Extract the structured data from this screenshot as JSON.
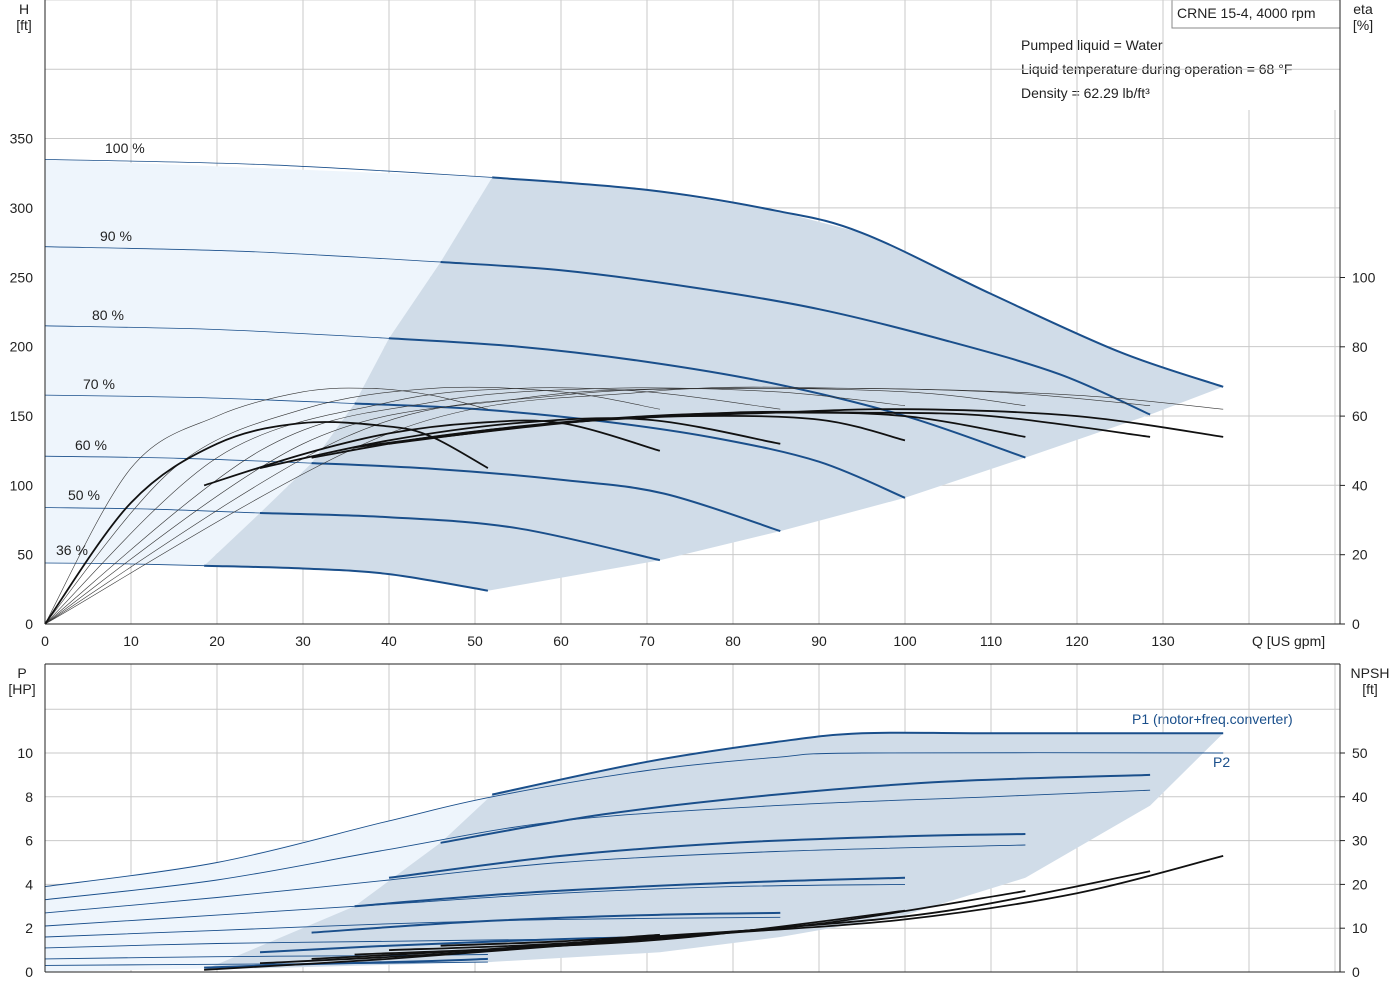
{
  "chart_data": [
    {
      "type": "line",
      "panel": "head-efficiency",
      "legend_box": "CRNE 15-4, 4000 rpm",
      "info": [
        "Pumped liquid = Water",
        "Liquid temperature during operation = 68 °F",
        "Density = 62.29 lb/ft³"
      ],
      "left_axis": {
        "title": "H",
        "unit": "[ft]",
        "ylim": [
          0,
          450
        ],
        "ticks": [
          0,
          50,
          100,
          150,
          200,
          250,
          300,
          350
        ]
      },
      "right_axis": {
        "title": "eta",
        "unit": "[%]",
        "ylim": [
          0,
          150
        ],
        "ticks": [
          0,
          20,
          40,
          60,
          80,
          100
        ]
      },
      "x_axis": {
        "unit": "Q [US gpm]",
        "xlim": [
          0,
          150
        ],
        "ticks": [
          0,
          10,
          20,
          30,
          40,
          50,
          60,
          70,
          80,
          90,
          100,
          110,
          120,
          130
        ]
      },
      "grid": true,
      "head_curves": [
        {
          "name": "100 %",
          "shut_off": 335,
          "points": [
            [
              52,
              322
            ],
            [
              70,
              313
            ],
            [
              85,
              298
            ],
            [
              95,
              282
            ],
            [
              110,
              238
            ],
            [
              125,
              196
            ],
            [
              137,
              171
            ]
          ]
        },
        {
          "name": "90 %",
          "shut_off": 272,
          "points": [
            [
              46,
              261
            ],
            [
              60,
              255
            ],
            [
              75,
              243
            ],
            [
              90,
              227
            ],
            [
              105,
              204
            ],
            [
              118,
              180
            ],
            [
              128.5,
              151
            ]
          ]
        },
        {
          "name": "80 %",
          "shut_off": 215,
          "points": [
            [
              40,
              206
            ],
            [
              55,
              200
            ],
            [
              70,
              189
            ],
            [
              85,
              173
            ],
            [
              100,
              150
            ],
            [
              114,
              120
            ]
          ]
        },
        {
          "name": "70 %",
          "shut_off": 165,
          "points": [
            [
              36,
              159
            ],
            [
              50,
              155
            ],
            [
              65,
              146
            ],
            [
              78,
              134
            ],
            [
              90,
              117
            ],
            [
              100,
              91
            ]
          ]
        },
        {
          "name": "60 %",
          "shut_off": 121,
          "points": [
            [
              31,
              116
            ],
            [
              45,
              112
            ],
            [
              60,
              104
            ],
            [
              72,
              94
            ],
            [
              85.5,
              67
            ]
          ]
        },
        {
          "name": "50 %",
          "shut_off": 84,
          "points": [
            [
              25,
              80
            ],
            [
              40,
              77
            ],
            [
              55,
              69
            ],
            [
              71.5,
              46
            ]
          ]
        },
        {
          "name": "36 %",
          "shut_off": 44,
          "points": [
            [
              18.5,
              42
            ],
            [
              30,
              40
            ],
            [
              40,
              36
            ],
            [
              51.5,
              24
            ]
          ]
        }
      ],
      "efficiency_curves": [
        {
          "points": [
            [
              0,
              0
            ],
            [
              10,
              35
            ],
            [
              20,
              52
            ],
            [
              30,
              58
            ],
            [
              40,
              57
            ],
            [
              45,
              54
            ],
            [
              51.5,
              45
            ]
          ]
        },
        {
          "points": [
            [
              18.5,
              40
            ],
            [
              30,
              49
            ],
            [
              40,
              55
            ],
            [
              50,
              58
            ],
            [
              60,
              58
            ],
            [
              71.5,
              50
            ]
          ]
        },
        {
          "points": [
            [
              25,
              45
            ],
            [
              40,
              53
            ],
            [
              55,
              58
            ],
            [
              70,
              59
            ],
            [
              85.5,
              52
            ]
          ]
        },
        {
          "points": [
            [
              31,
              48
            ],
            [
              45,
              54
            ],
            [
              60,
              58
            ],
            [
              75,
              60
            ],
            [
              90,
              59
            ],
            [
              100,
              53
            ]
          ]
        },
        {
          "points": [
            [
              36,
              51
            ],
            [
              55,
              57
            ],
            [
              70,
              60
            ],
            [
              85,
              61
            ],
            [
              100,
              60
            ],
            [
              114,
              54
            ]
          ]
        },
        {
          "points": [
            [
              40,
              52
            ],
            [
              60,
              58
            ],
            [
              80,
              61
            ],
            [
              95,
              61
            ],
            [
              110,
              60
            ],
            [
              128.5,
              54
            ]
          ]
        },
        {
          "points": [
            [
              46,
              54
            ],
            [
              65,
              59
            ],
            [
              85,
              61
            ],
            [
              100,
              62
            ],
            [
              120,
              60
            ],
            [
              137,
              54
            ]
          ]
        }
      ],
      "thin_efficiency_curves": [
        {
          "points": [
            [
              0,
              0
            ],
            [
              10,
              45
            ],
            [
              20,
              60
            ],
            [
              30,
              67
            ],
            [
              38,
              68
            ],
            [
              45,
              66
            ],
            [
              51.5,
              62
            ]
          ]
        },
        {
          "points": [
            [
              0,
              0
            ],
            [
              15,
              45
            ],
            [
              30,
              62
            ],
            [
              45,
              68
            ],
            [
              60,
              67
            ],
            [
              71.5,
              62
            ]
          ]
        },
        {
          "points": [
            [
              0,
              0
            ],
            [
              20,
              48
            ],
            [
              40,
              64
            ],
            [
              55,
              68
            ],
            [
              70,
              67
            ],
            [
              85.5,
              62
            ]
          ]
        },
        {
          "points": [
            [
              0,
              0
            ],
            [
              25,
              50
            ],
            [
              45,
              64
            ],
            [
              65,
              68
            ],
            [
              85,
              67
            ],
            [
              100,
              63
            ]
          ]
        },
        {
          "points": [
            [
              0,
              0
            ],
            [
              30,
              52
            ],
            [
              55,
              65
            ],
            [
              75,
              68
            ],
            [
              100,
              67
            ],
            [
              114,
              63
            ]
          ]
        },
        {
          "points": [
            [
              0,
              0
            ],
            [
              35,
              54
            ],
            [
              60,
              66
            ],
            [
              85,
              68
            ],
            [
              110,
              67
            ],
            [
              128.5,
              63
            ]
          ]
        },
        {
          "points": [
            [
              0,
              0
            ],
            [
              40,
              55
            ],
            [
              70,
              67
            ],
            [
              95,
              68
            ],
            [
              120,
              66
            ],
            [
              137,
              62
            ]
          ]
        }
      ]
    },
    {
      "type": "line",
      "panel": "power-npsh",
      "left_axis": {
        "title": "P",
        "unit": "[HP]",
        "ylim": [
          0,
          12
        ],
        "ticks": [
          0,
          2,
          4,
          6,
          8,
          10
        ]
      },
      "right_axis": {
        "title": "NPSH",
        "unit": "[ft]",
        "ylim": [
          0,
          60
        ],
        "ticks": [
          0,
          10,
          20,
          30,
          40,
          50
        ]
      },
      "grid": true,
      "series_labels": [
        "P1 (motor+freq.converter)",
        "P2"
      ],
      "p1_curves": [
        {
          "points": [
            [
              52,
              8.1
            ],
            [
              70,
              9.6
            ],
            [
              85,
              10.5
            ],
            [
              95,
              10.9
            ],
            [
              110,
              10.9
            ],
            [
              137,
              10.9
            ]
          ]
        },
        {
          "points": [
            [
              46,
              5.9
            ],
            [
              65,
              7.2
            ],
            [
              85,
              8.1
            ],
            [
              105,
              8.7
            ],
            [
              128.5,
              9.0
            ]
          ]
        },
        {
          "points": [
            [
              40,
              4.3
            ],
            [
              60,
              5.3
            ],
            [
              80,
              5.9
            ],
            [
              100,
              6.2
            ],
            [
              114,
              6.3
            ]
          ]
        },
        {
          "points": [
            [
              36,
              3.0
            ],
            [
              55,
              3.6
            ],
            [
              75,
              4.0
            ],
            [
              90,
              4.2
            ],
            [
              100,
              4.3
            ]
          ]
        },
        {
          "points": [
            [
              31,
              1.8
            ],
            [
              50,
              2.3
            ],
            [
              70,
              2.6
            ],
            [
              85.5,
              2.7
            ]
          ]
        },
        {
          "points": [
            [
              25,
              0.9
            ],
            [
              40,
              1.2
            ],
            [
              60,
              1.5
            ],
            [
              71.5,
              1.6
            ]
          ]
        },
        {
          "points": [
            [
              18.5,
              0.2
            ],
            [
              30,
              0.35
            ],
            [
              45,
              0.5
            ],
            [
              51.5,
              0.6
            ]
          ]
        }
      ],
      "p2_curves": [
        {
          "points": [
            [
              0,
              3.9
            ],
            [
              20,
              5.0
            ],
            [
              40,
              6.9
            ],
            [
              52,
              8.0
            ],
            [
              70,
              9.2
            ],
            [
              85,
              9.8
            ],
            [
              95,
              10.0
            ],
            [
              137,
              10.0
            ]
          ]
        },
        {
          "points": [
            [
              0,
              3.3
            ],
            [
              20,
              4.2
            ],
            [
              40,
              5.6
            ],
            [
              60,
              6.9
            ],
            [
              85,
              7.6
            ],
            [
              110,
              8.0
            ],
            [
              128.5,
              8.3
            ]
          ]
        },
        {
          "points": [
            [
              0,
              2.7
            ],
            [
              20,
              3.4
            ],
            [
              40,
              4.2
            ],
            [
              60,
              5.0
            ],
            [
              85,
              5.5
            ],
            [
              114,
              5.8
            ]
          ]
        },
        {
          "points": [
            [
              0,
              2.1
            ],
            [
              20,
              2.6
            ],
            [
              40,
              3.1
            ],
            [
              60,
              3.6
            ],
            [
              80,
              3.9
            ],
            [
              100,
              4.0
            ]
          ]
        },
        {
          "points": [
            [
              0,
              1.6
            ],
            [
              20,
              1.9
            ],
            [
              40,
              2.2
            ],
            [
              60,
              2.4
            ],
            [
              85.5,
              2.5
            ]
          ]
        },
        {
          "points": [
            [
              0,
              1.1
            ],
            [
              20,
              1.3
            ],
            [
              40,
              1.4
            ],
            [
              60,
              1.5
            ],
            [
              71.5,
              1.5
            ]
          ]
        },
        {
          "points": [
            [
              0,
              0.6
            ],
            [
              20,
              0.7
            ],
            [
              40,
              0.75
            ],
            [
              51.5,
              0.8
            ]
          ]
        },
        {
          "points": [
            [
              0,
              0.3
            ],
            [
              20,
              0.35
            ],
            [
              40,
              0.4
            ],
            [
              51.5,
              0.45
            ]
          ]
        }
      ],
      "npsh_curves": [
        {
          "points": [
            [
              18.5,
              0.5
            ],
            [
              40,
              3
            ],
            [
              60,
              6
            ],
            [
              80,
              9
            ],
            [
              100,
              12
            ],
            [
              120,
              18
            ],
            [
              137,
              26.5
            ]
          ]
        },
        {
          "points": [
            [
              25,
              2
            ],
            [
              45,
              4
            ],
            [
              65,
              7
            ],
            [
              85,
              10
            ],
            [
              105,
              14
            ],
            [
              128.5,
              23
            ]
          ]
        },
        {
          "points": [
            [
              31,
              3
            ],
            [
              50,
              5
            ],
            [
              70,
              8
            ],
            [
              90,
              11
            ],
            [
              114,
              18.5
            ]
          ]
        },
        {
          "points": [
            [
              36,
              4
            ],
            [
              55,
              5.5
            ],
            [
              75,
              8
            ],
            [
              100,
              14
            ]
          ]
        },
        {
          "points": [
            [
              40,
              5
            ],
            [
              60,
              6.5
            ],
            [
              85.5,
              10
            ]
          ]
        },
        {
          "points": [
            [
              46,
              6
            ],
            [
              60,
              7
            ],
            [
              71.5,
              8.5
            ]
          ]
        }
      ]
    }
  ]
}
